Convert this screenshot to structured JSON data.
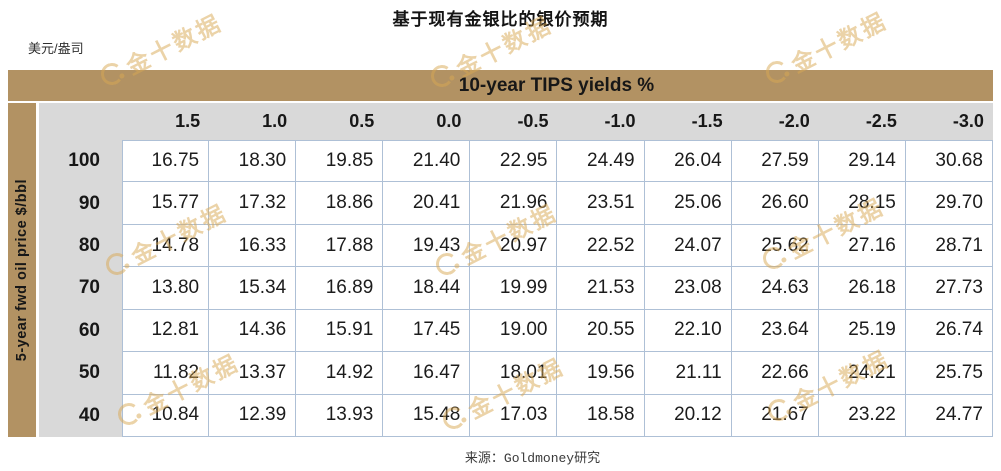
{
  "page": {
    "title": "基于现有金银比的银价预期",
    "unit_label": "美元/盎司",
    "source": "来源：Goldmoney研究"
  },
  "watermark": {
    "text": "金十数据",
    "color": "#d9a854"
  },
  "colors": {
    "band_tan": "#b29263",
    "header_gray": "#d9d9d9",
    "cell_border_blue": "#aec0d6",
    "text_black": "#171717"
  },
  "chart_data": {
    "type": "table",
    "title": "基于现有金银比的银价预期",
    "unit": "美元/盎司",
    "col_axis_label": "10-year TIPS yields %",
    "row_axis_label": "5-year fwd oil price $/bbl",
    "columns": [
      "1.5",
      "1.0",
      "0.5",
      "0.0",
      "-0.5",
      "-1.0",
      "-1.5",
      "-2.0",
      "-2.5",
      "-3.0"
    ],
    "rows": [
      {
        "label": "100",
        "values": [
          "16.75",
          "18.30",
          "19.85",
          "21.40",
          "22.95",
          "24.49",
          "26.04",
          "27.59",
          "29.14",
          "30.68"
        ]
      },
      {
        "label": "90",
        "values": [
          "15.77",
          "17.32",
          "18.86",
          "20.41",
          "21.96",
          "23.51",
          "25.06",
          "26.60",
          "28.15",
          "29.70"
        ]
      },
      {
        "label": "80",
        "values": [
          "14.78",
          "16.33",
          "17.88",
          "19.43",
          "20.97",
          "22.52",
          "24.07",
          "25.62",
          "27.16",
          "28.71"
        ]
      },
      {
        "label": "70",
        "values": [
          "13.80",
          "15.34",
          "16.89",
          "18.44",
          "19.99",
          "21.53",
          "23.08",
          "24.63",
          "26.18",
          "27.73"
        ]
      },
      {
        "label": "60",
        "values": [
          "12.81",
          "14.36",
          "15.91",
          "17.45",
          "19.00",
          "20.55",
          "22.10",
          "23.64",
          "25.19",
          "26.74"
        ]
      },
      {
        "label": "50",
        "values": [
          "11.82",
          "13.37",
          "14.92",
          "16.47",
          "18.01",
          "19.56",
          "21.11",
          "22.66",
          "24.21",
          "25.75"
        ]
      },
      {
        "label": "40",
        "values": [
          "10.84",
          "12.39",
          "13.93",
          "15.48",
          "17.03",
          "18.58",
          "20.12",
          "21.67",
          "23.22",
          "24.77"
        ]
      }
    ],
    "source": "来源：Goldmoney研究"
  }
}
